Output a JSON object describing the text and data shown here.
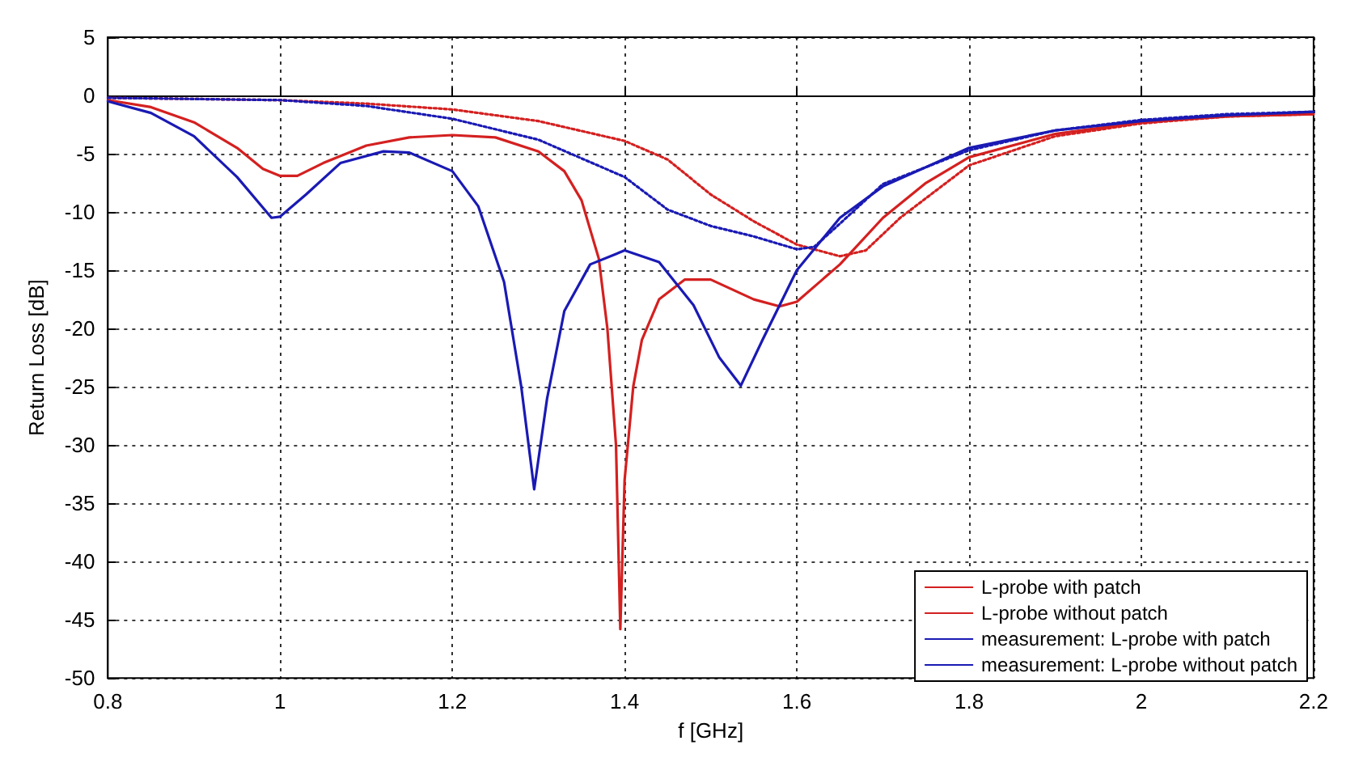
{
  "chart_data": {
    "type": "line",
    "xlabel": "f [GHz]",
    "ylabel": "Return Loss [dB]",
    "xlim": [
      0.8,
      2.2
    ],
    "xticks": [
      0.8,
      1,
      1.2,
      1.4,
      1.6,
      1.8,
      2,
      2.2
    ],
    "ylim": [
      -50,
      5
    ],
    "yticks": [
      -50,
      -45,
      -40,
      -35,
      -30,
      -25,
      -20,
      -15,
      -10,
      -5,
      0,
      5
    ],
    "grid": true,
    "legend": "bottom right",
    "marker": "none",
    "series": [
      {
        "name": "L-probe with patch",
        "color": "#d42020",
        "line_style": "solid",
        "x": [
          0.8,
          0.85,
          0.9,
          0.95,
          0.98,
          1.0,
          1.02,
          1.05,
          1.1,
          1.15,
          1.2,
          1.25,
          1.3,
          1.33,
          1.35,
          1.37,
          1.38,
          1.39,
          1.395,
          1.4,
          1.41,
          1.42,
          1.44,
          1.47,
          1.5,
          1.55,
          1.58,
          1.6,
          1.65,
          1.7,
          1.75,
          1.8,
          1.9,
          2.0,
          2.1,
          2.2
        ],
        "values": [
          -0.4,
          -1,
          -2.3,
          -4.5,
          -6.3,
          -6.9,
          -6.9,
          -5.8,
          -4.3,
          -3.6,
          -3.4,
          -3.6,
          -4.8,
          -6.5,
          -9,
          -14,
          -20,
          -30,
          -45.8,
          -33,
          -25,
          -21,
          -17.5,
          -15.8,
          -15.8,
          -17.5,
          -18.1,
          -17.7,
          -14.5,
          -10.5,
          -7.5,
          -5.3,
          -3.3,
          -2.3,
          -1.8,
          -1.6
        ]
      },
      {
        "name": "L-probe without patch",
        "color": "#d42020",
        "line_style": "dotted",
        "x": [
          0.8,
          1.0,
          1.1,
          1.2,
          1.3,
          1.4,
          1.45,
          1.5,
          1.55,
          1.6,
          1.65,
          1.68,
          1.72,
          1.8,
          1.9,
          2.0,
          2.1,
          2.2
        ],
        "values": [
          -0.2,
          -0.4,
          -0.7,
          -1.2,
          -2.2,
          -3.9,
          -5.5,
          -8.5,
          -10.8,
          -12.8,
          -13.8,
          -13.3,
          -10.5,
          -6,
          -3.5,
          -2.4,
          -1.8,
          -1.6
        ]
      },
      {
        "name": "measurement: L-probe with patch",
        "color": "#1a1ab4",
        "line_style": "solid",
        "x": [
          0.8,
          0.85,
          0.9,
          0.95,
          0.99,
          1.0,
          1.03,
          1.07,
          1.12,
          1.15,
          1.2,
          1.23,
          1.26,
          1.28,
          1.295,
          1.31,
          1.33,
          1.36,
          1.4,
          1.44,
          1.48,
          1.51,
          1.535,
          1.56,
          1.6,
          1.65,
          1.7,
          1.8,
          1.9,
          2.0,
          2.1,
          2.2
        ],
        "values": [
          -0.5,
          -1.5,
          -3.5,
          -7,
          -10.5,
          -10.4,
          -8.5,
          -5.8,
          -4.8,
          -4.9,
          -6.5,
          -9.5,
          -16,
          -25,
          -33.8,
          -26,
          -18.5,
          -14.5,
          -13.3,
          -14.3,
          -18,
          -22.5,
          -24.9,
          -21,
          -15,
          -10.5,
          -7.8,
          -4.5,
          -3,
          -2.2,
          -1.7,
          -1.4
        ]
      },
      {
        "name": "measurement: L-probe without patch",
        "color": "#1a1ab4",
        "line_style": "dotted",
        "x": [
          0.8,
          1.0,
          1.1,
          1.2,
          1.3,
          1.4,
          1.45,
          1.5,
          1.55,
          1.6,
          1.62,
          1.65,
          1.7,
          1.8,
          1.9,
          2.0,
          2.1,
          2.2
        ],
        "values": [
          -0.2,
          -0.4,
          -0.9,
          -2,
          -3.8,
          -7,
          -9.8,
          -11.2,
          -12.1,
          -13.2,
          -13,
          -11,
          -7.6,
          -4.7,
          -3,
          -2.1,
          -1.6,
          -1.4
        ]
      }
    ]
  }
}
